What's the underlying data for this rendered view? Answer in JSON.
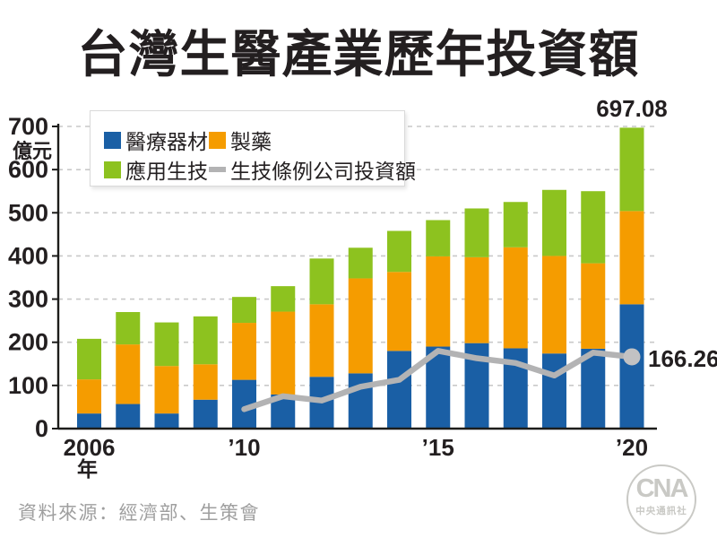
{
  "title": "台灣生醫產業歷年投資額",
  "source": "資料來源：經濟部、生策會",
  "logo": {
    "text": "CNA",
    "subtext": "中央通訊社"
  },
  "chart_data": {
    "type": "bar",
    "stacked": true,
    "title": "台灣生醫產業歷年投資額",
    "unit_label": "億元",
    "ylabel": "億元",
    "xlabel": "年",
    "ylim": [
      0,
      700
    ],
    "yticks": [
      0,
      100,
      200,
      300,
      400,
      500,
      600,
      700
    ],
    "grid": "horizontal-dashed",
    "legend_position": "top-left-inside",
    "categories": [
      2006,
      2007,
      2008,
      2009,
      2010,
      2011,
      2012,
      2013,
      2014,
      2015,
      2016,
      2017,
      2018,
      2019,
      2020
    ],
    "xtick_labels": [
      {
        "index": 0,
        "label": "2006",
        "sublabel": "年"
      },
      {
        "index": 4,
        "label": "’10"
      },
      {
        "index": 9,
        "label": "’15"
      },
      {
        "index": 14,
        "label": "’20"
      }
    ],
    "series": [
      {
        "name": "醫療器材",
        "type": "bar",
        "color": "#1a5fa5",
        "values": [
          35,
          57,
          35,
          67,
          113,
          79,
          120,
          128,
          180,
          190,
          198,
          186,
          174,
          185,
          288
        ]
      },
      {
        "name": "製藥",
        "type": "bar",
        "color": "#f59c00",
        "values": [
          79,
          138,
          110,
          82,
          132,
          192,
          168,
          220,
          183,
          209,
          199,
          234,
          226,
          198,
          216
        ]
      },
      {
        "name": "應用生技",
        "type": "bar",
        "color": "#8dc21f",
        "values": [
          94,
          75,
          101,
          111,
          60,
          59,
          106,
          71,
          95,
          84,
          113,
          105,
          153,
          167,
          193.08
        ]
      },
      {
        "name": "生技條例公司投資額",
        "type": "line",
        "color": "#b3b3b4",
        "values": [
          null,
          null,
          null,
          null,
          45,
          75,
          65,
          97,
          113,
          180,
          163,
          152,
          123,
          176,
          166.26
        ]
      }
    ],
    "totals": [
      208,
      270,
      246,
      260,
      305,
      330,
      394,
      419,
      458,
      483,
      510,
      525,
      553,
      550,
      697.08
    ],
    "annotations": [
      {
        "text": "697.08",
        "target": "2020-total"
      },
      {
        "text": "166.26",
        "target": "2020-line-end"
      }
    ],
    "style": {
      "grid_color": "#c9c9c9",
      "axis_color": "#1d1d1b",
      "text_color": "#231f20",
      "line_color": "#b3b3b4",
      "dot_color": "#c2c2c3",
      "background": "#ffffff",
      "source_color": "#9f9f9f",
      "logo_color": "#c9c9c5"
    }
  }
}
